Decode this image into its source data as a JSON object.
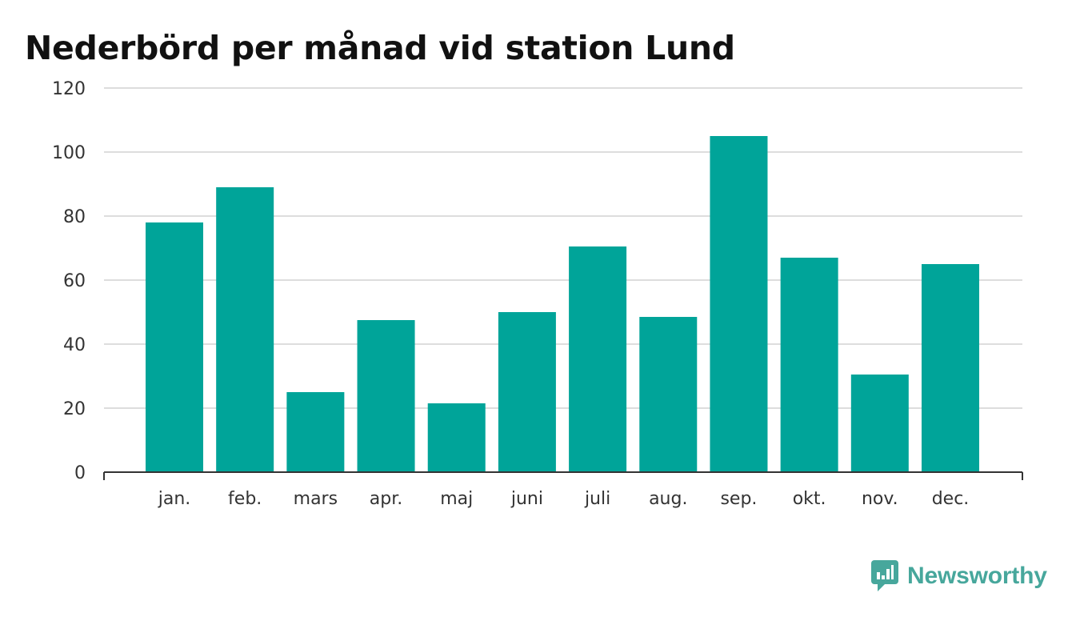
{
  "chart_data": {
    "type": "bar",
    "title": "Nederbörd per månad vid station Lund",
    "xlabel": "",
    "ylabel": "",
    "categories": [
      "jan.",
      "feb.",
      "mars",
      "apr.",
      "maj",
      "juni",
      "juli",
      "aug.",
      "sep.",
      "okt.",
      "nov.",
      "dec."
    ],
    "values": [
      78,
      89,
      25,
      47.5,
      21.5,
      50,
      70.5,
      48.5,
      105,
      67,
      30.5,
      65
    ],
    "ylim": [
      0,
      120
    ],
    "yticks": [
      0,
      20,
      40,
      60,
      80,
      100,
      120
    ],
    "grid": true,
    "colors": {
      "bar": "#00a499",
      "grid": "#dddddd",
      "axis": "#333333"
    }
  },
  "branding": {
    "name": "Newsworthy",
    "icon": "newsworthy-logo-icon",
    "color": "#47a79c"
  }
}
